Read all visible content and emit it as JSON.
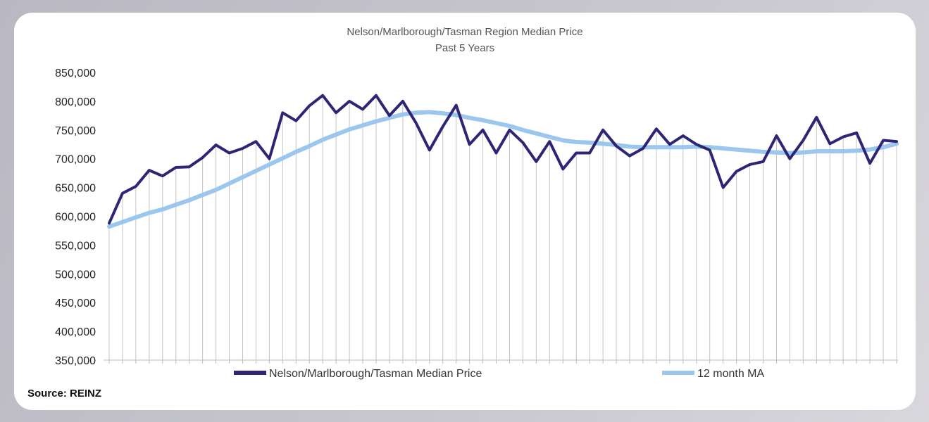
{
  "chart_data": {
    "type": "line",
    "title": "Nelson/Marlborough/Tasman Region Median Price",
    "subtitle": "Past 5 Years",
    "xlabel": "",
    "ylabel": "",
    "ylim": [
      350000,
      850000
    ],
    "y_ticks": [
      "850,000",
      "800,000",
      "750,000",
      "700,000",
      "650,000",
      "600,000",
      "550,000",
      "500,000",
      "450,000",
      "400,000",
      "350,000"
    ],
    "y_tick_values": [
      850000,
      800000,
      750000,
      700000,
      650000,
      600000,
      550000,
      500000,
      450000,
      400000,
      350000
    ],
    "grid": "vertical drop lines per month",
    "legend_position": "bottom",
    "series": [
      {
        "name": "Nelson/Marlborough/Tasman Median Price",
        "color": "#2e2674",
        "values": [
          588000,
          640000,
          652000,
          680000,
          670000,
          685000,
          686000,
          702000,
          724000,
          710000,
          718000,
          730000,
          700000,
          780000,
          766000,
          792000,
          810000,
          780000,
          800000,
          786000,
          810000,
          775000,
          800000,
          762000,
          715000,
          756000,
          793000,
          725000,
          750000,
          710000,
          750000,
          728000,
          695000,
          730000,
          682000,
          710000,
          710000,
          750000,
          722000,
          705000,
          718000,
          752000,
          725000,
          740000,
          725000,
          715000,
          650000,
          678000,
          690000,
          695000,
          740000,
          700000,
          732000,
          772000,
          726000,
          738000,
          745000,
          692000,
          732000,
          730000
        ]
      },
      {
        "name": "12 month MA",
        "color": "#9bc6ee",
        "values": [
          582000,
          590000,
          598000,
          606000,
          612000,
          620000,
          628000,
          637000,
          646000,
          657000,
          668000,
          679000,
          690000,
          701000,
          712000,
          722000,
          733000,
          742000,
          751000,
          758000,
          765000,
          771000,
          777000,
          780000,
          781000,
          779000,
          776000,
          771000,
          767000,
          762000,
          757000,
          750000,
          744000,
          738000,
          732000,
          729000,
          728000,
          726000,
          724000,
          721000,
          720000,
          720000,
          720000,
          720000,
          721000,
          720000,
          718000,
          716000,
          714000,
          712000,
          711000,
          710000,
          711000,
          713000,
          713000,
          713000,
          714000,
          716000,
          720000,
          726000
        ]
      }
    ],
    "source": "Source: REINZ"
  }
}
